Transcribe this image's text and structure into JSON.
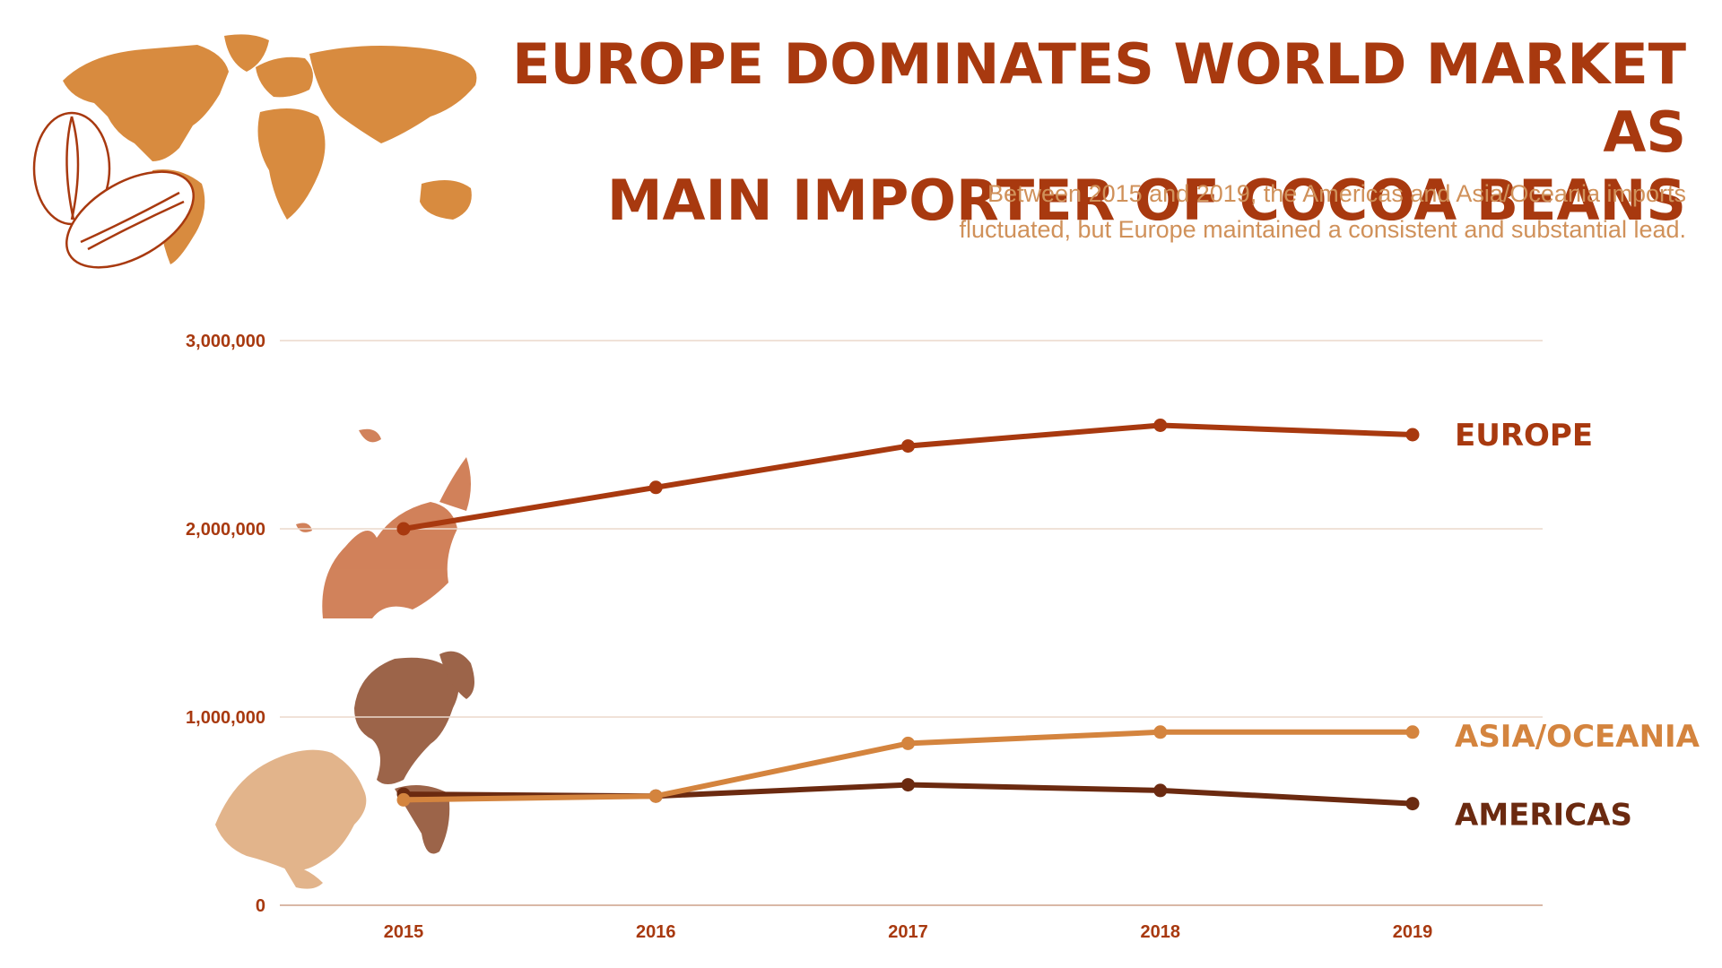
{
  "header": {
    "title_lines": [
      "EUROPE DOMINATES WORLD MARKET AS",
      "MAIN IMPORTER OF COCOA BEANS"
    ],
    "subtitle_lines": [
      "Between 2015 and 2019, the Americas and Asia/Oceania imports",
      "fluctuated, but Europe maintained a consistent and substantial lead."
    ]
  },
  "colors": {
    "title": "#a8390f",
    "subtitle": "#d0915a",
    "europe": "#a8390f",
    "asia_oceania": "#d4843e",
    "americas": "#6b2a10",
    "grid": "#ecd9cc",
    "map": "#d88b3f"
  },
  "icons": [
    "world-map-icon",
    "cocoa-bean-icon",
    "europe-map-icon",
    "americas-map-icon",
    "asia-oceania-map-icon"
  ],
  "chart_data": {
    "type": "line",
    "title": "EUROPE DOMINATES WORLD MARKET AS MAIN IMPORTER OF COCOA BEANS",
    "subtitle": "Between 2015 and 2019, the Americas and Asia/Oceania imports fluctuated, but Europe maintained a consistent and substantial lead.",
    "xlabel": "",
    "ylabel": "",
    "x": [
      "2015",
      "2016",
      "2017",
      "2018",
      "2019"
    ],
    "ylim": [
      0,
      3000000
    ],
    "yticks": [
      0,
      1000000,
      2000000,
      3000000
    ],
    "ytick_labels": [
      "0",
      "1,000,000",
      "2,000,000",
      "3,000,000"
    ],
    "grid": true,
    "legend": "direct labels at right end of lines",
    "series": [
      {
        "name": "EUROPE",
        "color": "#a8390f",
        "values": [
          2000000,
          2220000,
          2440000,
          2550000,
          2500000
        ]
      },
      {
        "name": "ASIA/OCEANIA",
        "color": "#d4843e",
        "values": [
          560000,
          580000,
          860000,
          920000,
          920000
        ]
      },
      {
        "name": "AMERICAS",
        "color": "#6b2a10",
        "values": [
          590000,
          580000,
          640000,
          610000,
          540000
        ]
      }
    ]
  }
}
